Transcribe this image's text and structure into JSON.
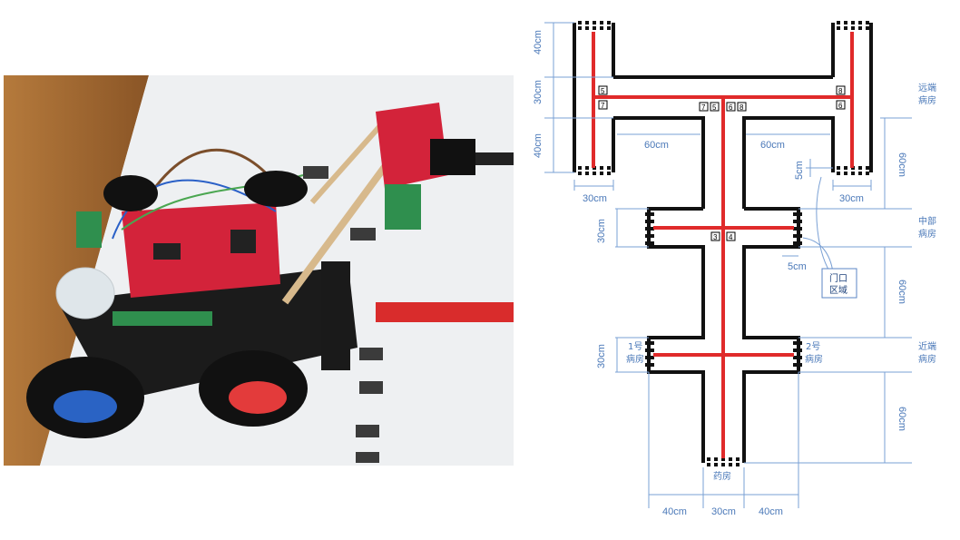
{
  "photo": {
    "description_icon": "robot-car-photo"
  },
  "diagram": {
    "dims": {
      "left_40cm_top": "40cm",
      "left_30cm_upper": "30cm",
      "left_40cm_lower": "40cm",
      "left_30cm_bottom": "30cm",
      "left_60cm": "60cm",
      "right_60cm": "60cm",
      "right_30cm": "30cm",
      "right_5cm": "5cm",
      "right_60cm_vertical": "60cm",
      "mid_30cm": "30cm",
      "mid_5cm": "5cm",
      "mid_60cm": "60cm",
      "near_30cm": "30cm",
      "bottom_60cm": "60cm",
      "bottom_40cm_left": "40cm",
      "bottom_30cm": "30cm",
      "bottom_40cm_right": "40cm"
    },
    "labels": {
      "far_ward": "远端\n病房",
      "middle_ward": "中部\n病房",
      "near_ward": "近端\n病房",
      "door_area": "门口\n区域",
      "room1": "1号\n病房",
      "room2": "2号\n病房",
      "pharmacy": "药房"
    },
    "markers": [
      "5",
      "7",
      "7",
      "5",
      "6",
      "8",
      "8",
      "6",
      "3",
      "4"
    ],
    "colors": {
      "track": "#e02a2a",
      "wall": "#111111",
      "dim": "#4a78b8"
    }
  }
}
